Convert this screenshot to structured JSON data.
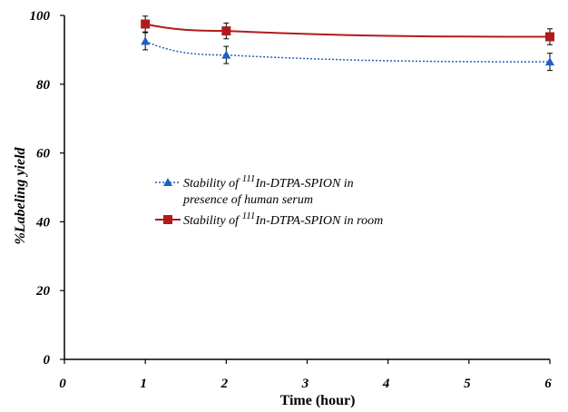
{
  "chart_data": {
    "type": "line",
    "xlabel": "Time (hour)",
    "ylabel": "%Labeling  yield",
    "xlim": [
      0,
      6
    ],
    "ylim": [
      0,
      100
    ],
    "x_ticks": [
      "0",
      "1",
      "2",
      "3",
      "4",
      "5",
      "6"
    ],
    "y_ticks": [
      "0",
      "20",
      "40",
      "60",
      "80",
      "100"
    ],
    "grid": false,
    "legend_position": "center-left",
    "series": [
      {
        "name_parts": [
          "Stability of ",
          "111",
          "In-DTPA-SPION in",
          "presence of human serum"
        ],
        "marker": "triangle",
        "line_style": "dotted",
        "color": "#1f5fbf",
        "x": [
          1,
          2,
          6
        ],
        "y": [
          92.5,
          88.5,
          86.5
        ],
        "error": [
          2.5,
          2.5,
          2.5
        ]
      },
      {
        "name_parts": [
          "Stability of ",
          "111",
          "In-DTPA-SPION in room",
          ""
        ],
        "marker": "square",
        "line_style": "solid",
        "color": "#b01c1c",
        "x": [
          1,
          2,
          6
        ],
        "y": [
          97.5,
          95.5,
          93.8
        ],
        "error": [
          2.3,
          2.3,
          2.3
        ]
      }
    ]
  }
}
